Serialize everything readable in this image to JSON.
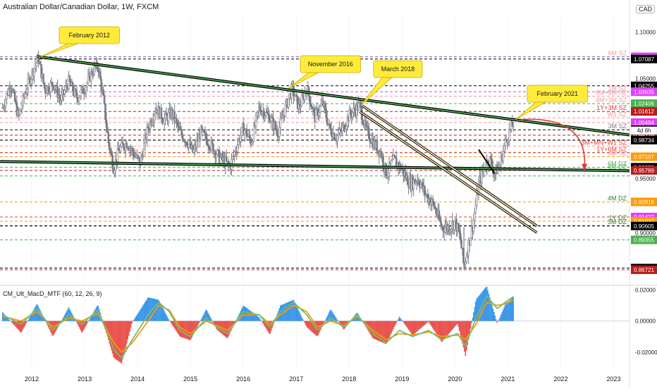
{
  "header": {
    "title": "Australian Dollar/Canadian Dollar, 1W, FXCM",
    "currency_badge": "CAD"
  },
  "colors": {
    "candle": "#787b86",
    "trendline_outer": "#000000",
    "trendline_inner": "#4caf50",
    "channel_inner": "#f5e6a8",
    "callout_fill": "#ffeb3b",
    "callout_stroke": "#c9a800",
    "arrow": "#e53935",
    "macd_green": "#6fbf73",
    "macd_orange": "#ff9800",
    "macd_red_hist": "#e53935",
    "macd_blue_hist": "#1e88e5"
  },
  "chart_data": [
    {
      "type": "candlestick",
      "symbol": "AUDCAD",
      "x_labels": [
        "2012",
        "2013",
        "2014",
        "2015",
        "2016",
        "2017",
        "2018",
        "2019",
        "2020",
        "2021",
        "2022",
        "2023"
      ],
      "x_range": [
        2011.4,
        2023.3
      ],
      "y_range": [
        0.855,
        1.117
      ],
      "y_scale": "log",
      "price_axis_labels": [
        "1.10000",
        "1.05000",
        "1.00000",
        "0.95000",
        "0.90000"
      ],
      "close_path": [
        [
          2011.45,
          1.02
        ],
        [
          2011.6,
          1.045
        ],
        [
          2011.75,
          1.01
        ],
        [
          2011.9,
          1.04
        ],
        [
          2012.05,
          1.062
        ],
        [
          2012.12,
          1.072
        ],
        [
          2012.25,
          1.038
        ],
        [
          2012.4,
          1.045
        ],
        [
          2012.55,
          1.028
        ],
        [
          2012.7,
          1.047
        ],
        [
          2012.85,
          1.03
        ],
        [
          2013.0,
          1.04
        ],
        [
          2013.15,
          1.058
        ],
        [
          2013.25,
          1.064
        ],
        [
          2013.35,
          1.03
        ],
        [
          2013.45,
          0.985
        ],
        [
          2013.55,
          0.96
        ],
        [
          2013.65,
          0.978
        ],
        [
          2013.8,
          0.985
        ],
        [
          2013.95,
          0.972
        ],
        [
          2014.05,
          0.965
        ],
        [
          2014.2,
          1.0
        ],
        [
          2014.35,
          1.02
        ],
        [
          2014.5,
          1.008
        ],
        [
          2014.65,
          1.015
        ],
        [
          2014.8,
          0.995
        ],
        [
          2014.95,
          0.985
        ],
        [
          2015.05,
          0.975
        ],
        [
          2015.2,
          0.995
        ],
        [
          2015.35,
          0.985
        ],
        [
          2015.55,
          0.97
        ],
        [
          2015.75,
          0.962
        ],
        [
          2015.9,
          0.985
        ],
        [
          2016.0,
          1.0
        ],
        [
          2016.15,
          0.985
        ],
        [
          2016.3,
          1.02
        ],
        [
          2016.5,
          1.01
        ],
        [
          2016.65,
          0.995
        ],
        [
          2016.8,
          1.02
        ],
        [
          2016.92,
          1.04
        ],
        [
          2017.05,
          1.02
        ],
        [
          2017.2,
          1.04
        ],
        [
          2017.35,
          1.01
        ],
        [
          2017.5,
          1.025
        ],
        [
          2017.62,
          1.0
        ],
        [
          2017.75,
          0.99
        ],
        [
          2017.9,
          1.0
        ],
        [
          2018.0,
          1.012
        ],
        [
          2018.2,
          1.022
        ],
        [
          2018.3,
          1.0
        ],
        [
          2018.45,
          0.985
        ],
        [
          2018.6,
          0.975
        ],
        [
          2018.7,
          0.955
        ],
        [
          2018.85,
          0.968
        ],
        [
          2019.0,
          0.958
        ],
        [
          2019.15,
          0.945
        ],
        [
          2019.3,
          0.95
        ],
        [
          2019.45,
          0.935
        ],
        [
          2019.6,
          0.925
        ],
        [
          2019.75,
          0.905
        ],
        [
          2019.9,
          0.905
        ],
        [
          2020.0,
          0.91
        ],
        [
          2020.1,
          0.895
        ],
        [
          2020.17,
          0.87
        ],
        [
          2020.25,
          0.888
        ],
        [
          2020.35,
          0.91
        ],
        [
          2020.45,
          0.945
        ],
        [
          2020.55,
          0.96
        ],
        [
          2020.65,
          0.97
        ],
        [
          2020.75,
          0.955
        ],
        [
          2020.85,
          0.963
        ],
        [
          2020.95,
          0.985
        ],
        [
          2021.05,
          0.998
        ],
        [
          2021.12,
          1.006
        ]
      ],
      "horizontal_levels": [
        {
          "price": 1.0733,
          "label": "6M SZ",
          "box": "1.07330",
          "box_color": "#e040fb",
          "line_color": "#7e57c2",
          "label_color": "#ef9a9a"
        },
        {
          "price": 1.07087,
          "label": "",
          "box": "1.07087",
          "box_color": "#000000",
          "line_color": "#000000",
          "label_color": "#000000"
        },
        {
          "price": 1.04255,
          "label": "",
          "box": "1.04255",
          "box_color": "#000000",
          "line_color": "#000000",
          "label_color": "#000000"
        },
        {
          "price": 1.03635,
          "label": "1M SZ",
          "box": "1.03635",
          "box_color": "#e040fb",
          "line_color": "#e040fb",
          "label_color": "#ef9a9a"
        },
        {
          "price": 1.0318,
          "label": "6M+3M SZ",
          "box": "",
          "box_color": "",
          "line_color": "#ef9a9a",
          "label_color": "#ef9a9a"
        },
        {
          "price": 1.02406,
          "label": "4M+3M SZ",
          "box": "1.02406",
          "box_color": "#4caf50",
          "line_color": "#4caf50",
          "label_color": "#ef9a9a"
        },
        {
          "price": 1.01612,
          "label": "1Y+3M SZ",
          "box": "1.01612",
          "box_color": "#b71c1c",
          "line_color": "#b71c1c",
          "label_color": "#e53935"
        },
        {
          "price": 1.0095,
          "label": "W1 SZ",
          "box": "",
          "box_color": "",
          "line_color": "#ef9a9a",
          "label_color": "#ef9a9a"
        },
        {
          "price": 1.00494,
          "label": "",
          "box": "1.00494",
          "box_color": "#e040fb",
          "line_color": "#ef9a9a",
          "label_color": "#ef9a9a"
        },
        {
          "price": 0.99767,
          "label": "3M SZ",
          "box": "0.99767",
          "box_color": "#000000",
          "line_color": "#000000",
          "label_color": "#787b86"
        },
        {
          "price": 0.9876,
          "label": "",
          "box": "",
          "box_color": "",
          "line_color": "#ff9800",
          "label_color": "#ff9800"
        },
        {
          "price": 0.9815,
          "label": "3M+MN+W1 SZ",
          "box": "",
          "box_color": "",
          "line_color": "#ef9a9a",
          "label_color": "#e53935"
        },
        {
          "price": 0.99229,
          "label": "",
          "box": "0.99229",
          "box_color": "#b71c1c",
          "line_color": "#b71c1c",
          "label_color": "#e53935"
        },
        {
          "price": 0.975,
          "label": "1Y+6M SZ",
          "box": "",
          "box_color": "",
          "line_color": "#b71c1c",
          "label_color": "#e53935"
        },
        {
          "price": 0.98734,
          "label": "",
          "box": "0.98734",
          "box_color": "#000000",
          "line_color": "#000000",
          "label_color": "#000000"
        },
        {
          "price": 0.97107,
          "label": "3M SZ",
          "box": "0.97107",
          "box_color": "#ff9800",
          "line_color": "#ff9800",
          "label_color": "#ef9a9a"
        },
        {
          "price": 0.96098,
          "label": "6M DZ",
          "box": "0.96098",
          "box_color": "#000000",
          "line_color": "#4caf50",
          "label_color": "#4caf50"
        },
        {
          "price": 0.95789,
          "label": "4M DZ",
          "box": "0.95789",
          "box_color": "#b71c1c",
          "line_color": "#b71c1c",
          "label_color": "#4caf50"
        },
        {
          "price": 0.95258,
          "label": "",
          "box": "",
          "box_color": "",
          "line_color": "#4caf50",
          "label_color": "#4caf50"
        },
        {
          "price": 0.92816,
          "label": "4M DZ",
          "box": "0.92816",
          "box_color": "#ff9800",
          "line_color": "#ff9800",
          "label_color": "#2e7d32"
        },
        {
          "price": 0.91427,
          "label": "",
          "box": "0.91427",
          "box_color": "#e040fb",
          "line_color": "#e53935",
          "label_color": "#e53935"
        },
        {
          "price": 0.91037,
          "label": "1Y DZ",
          "box": "0.91037",
          "box_color": "#ff9800",
          "line_color": "#ff9800",
          "label_color": "#2e7d32"
        },
        {
          "price": 0.9065,
          "label": "3M DZ",
          "box": "",
          "box_color": "",
          "line_color": "#4caf50",
          "label_color": "#2e7d32"
        },
        {
          "price": 0.90605,
          "label": "",
          "box": "0.90605",
          "box_color": "#000000",
          "line_color": "#000000",
          "label_color": "#000000"
        },
        {
          "price": 0.89355,
          "label": "",
          "box": "0.89355",
          "box_color": "#4caf50",
          "line_color": "#4caf50",
          "label_color": "#4caf50"
        },
        {
          "price": 0.8687,
          "label": "",
          "box": "0.86870",
          "box_color": "#000000",
          "line_color": "#000000",
          "label_color": "#000000"
        },
        {
          "price": 0.86721,
          "label": "",
          "box": "0.86721",
          "box_color": "#b71c1c",
          "line_color": "#b71c1c",
          "label_color": "#b71c1c"
        }
      ],
      "side_badge": "4d 6h",
      "trendlines": [
        {
          "style": "green",
          "from": [
            2012.1,
            1.0735
          ],
          "to": [
            2023.3,
            0.9925
          ]
        },
        {
          "style": "green",
          "from": [
            2011.4,
            0.9665
          ],
          "to": [
            2023.3,
            0.9575
          ]
        },
        {
          "style": "channel",
          "from": [
            2018.25,
            1.022
          ],
          "to": [
            2021.55,
            0.906
          ]
        },
        {
          "style": "channel",
          "from": [
            2018.2,
            1.016
          ],
          "to": [
            2021.55,
            0.9
          ]
        },
        {
          "style": "black",
          "from": [
            2020.45,
            0.978
          ],
          "to": [
            2020.75,
            0.955
          ]
        }
      ],
      "callouts": [
        {
          "text": "February 2012",
          "anchor": [
            2012.12,
            1.072
          ]
        },
        {
          "text": "November 2016",
          "anchor": [
            2016.85,
            1.04
          ]
        },
        {
          "text": "March 2018",
          "anchor": [
            2018.22,
            1.022
          ]
        },
        {
          "text": "February 2021",
          "anchor": [
            2021.15,
            1.008
          ]
        }
      ],
      "projection_arrow": {
        "from": [
          2021.25,
          1.008
        ],
        "to": [
          2022.45,
          0.9575
        ]
      }
    },
    {
      "type": "macd_histogram",
      "title": "CM_Ult_MacD_MTF (60, 12, 26, 9)",
      "y_range": [
        -0.03,
        0.022
      ],
      "y_tick_labels": [
        "0.02000",
        "0.00000",
        "-0.02000"
      ],
      "macd": [
        [
          2011.45,
          0.004
        ],
        [
          2011.8,
          -0.002
        ],
        [
          2012.1,
          0.008
        ],
        [
          2012.4,
          -0.006
        ],
        [
          2012.7,
          0.004
        ],
        [
          2012.95,
          -0.002
        ],
        [
          2013.25,
          0.007
        ],
        [
          2013.55,
          -0.018
        ],
        [
          2013.7,
          -0.024
        ],
        [
          2013.9,
          -0.012
        ],
        [
          2014.2,
          0.004
        ],
        [
          2014.4,
          0.012
        ],
        [
          2014.6,
          0.006
        ],
        [
          2014.8,
          -0.006
        ],
        [
          2015.0,
          -0.01
        ],
        [
          2015.3,
          0.002
        ],
        [
          2015.5,
          -0.004
        ],
        [
          2015.7,
          -0.008
        ],
        [
          2016.0,
          0.006
        ],
        [
          2016.3,
          0.004
        ],
        [
          2016.5,
          -0.004
        ],
        [
          2016.7,
          0.006
        ],
        [
          2016.95,
          0.012
        ],
        [
          2017.2,
          0.004
        ],
        [
          2017.4,
          -0.006
        ],
        [
          2017.65,
          0.002
        ],
        [
          2017.9,
          -0.004
        ],
        [
          2018.15,
          0.004
        ],
        [
          2018.45,
          -0.008
        ],
        [
          2018.7,
          -0.014
        ],
        [
          2018.95,
          -0.006
        ],
        [
          2019.2,
          -0.01
        ],
        [
          2019.5,
          -0.006
        ],
        [
          2019.75,
          -0.012
        ],
        [
          2020.05,
          -0.008
        ],
        [
          2020.2,
          -0.016
        ],
        [
          2020.4,
          0.002
        ],
        [
          2020.6,
          0.016
        ],
        [
          2020.8,
          0.008
        ],
        [
          2020.95,
          0.012
        ],
        [
          2021.12,
          0.016
        ]
      ],
      "signal": [
        [
          2011.45,
          0.003
        ],
        [
          2011.8,
          0.0
        ],
        [
          2012.1,
          0.006
        ],
        [
          2012.4,
          -0.004
        ],
        [
          2012.7,
          0.002
        ],
        [
          2012.95,
          0.0
        ],
        [
          2013.25,
          0.005
        ],
        [
          2013.55,
          -0.014
        ],
        [
          2013.7,
          -0.02
        ],
        [
          2013.9,
          -0.014
        ],
        [
          2014.2,
          0.0
        ],
        [
          2014.4,
          0.01
        ],
        [
          2014.6,
          0.007
        ],
        [
          2014.8,
          -0.004
        ],
        [
          2015.0,
          -0.008
        ],
        [
          2015.3,
          0.0
        ],
        [
          2015.5,
          -0.003
        ],
        [
          2015.7,
          -0.006
        ],
        [
          2016.0,
          0.004
        ],
        [
          2016.3,
          0.004
        ],
        [
          2016.5,
          -0.002
        ],
        [
          2016.7,
          0.004
        ],
        [
          2016.95,
          0.01
        ],
        [
          2017.2,
          0.006
        ],
        [
          2017.4,
          -0.004
        ],
        [
          2017.65,
          0.0
        ],
        [
          2017.9,
          -0.003
        ],
        [
          2018.15,
          0.003
        ],
        [
          2018.45,
          -0.006
        ],
        [
          2018.7,
          -0.012
        ],
        [
          2018.95,
          -0.008
        ],
        [
          2019.2,
          -0.009
        ],
        [
          2019.5,
          -0.007
        ],
        [
          2019.75,
          -0.01
        ],
        [
          2020.05,
          -0.009
        ],
        [
          2020.2,
          -0.012
        ],
        [
          2020.4,
          -0.002
        ],
        [
          2020.6,
          0.012
        ],
        [
          2020.8,
          0.01
        ],
        [
          2020.95,
          0.011
        ],
        [
          2021.12,
          0.014
        ]
      ]
    }
  ]
}
